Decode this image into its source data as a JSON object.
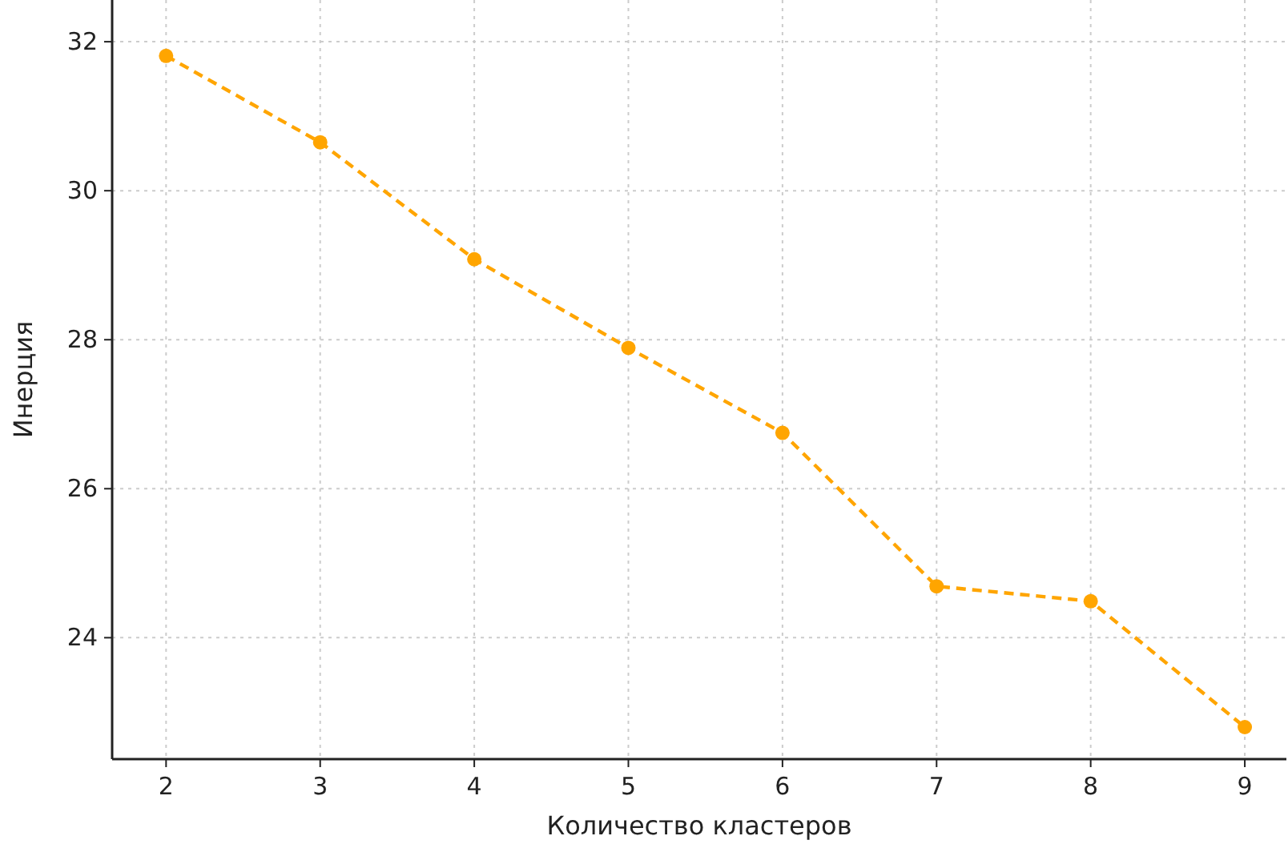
{
  "chart_data": {
    "type": "line",
    "xlabel": "Количество кластеров",
    "ylabel": "Инерция",
    "x": [
      2,
      3,
      4,
      5,
      6,
      7,
      8,
      9
    ],
    "series": [
      {
        "color": "#ffa500",
        "values": [
          31.81,
          30.65,
          29.08,
          27.89,
          26.75,
          24.69,
          24.49,
          22.8
        ]
      }
    ],
    "xlim": [
      1.65,
      9.27
    ],
    "ylim": [
      22.37,
      32.56
    ],
    "xticks": [
      2,
      3,
      4,
      5,
      6,
      7,
      8,
      9
    ],
    "yticks": [
      24,
      26,
      28,
      30,
      32
    ],
    "grid": true,
    "marker": "circle",
    "line_style": "dashed"
  }
}
